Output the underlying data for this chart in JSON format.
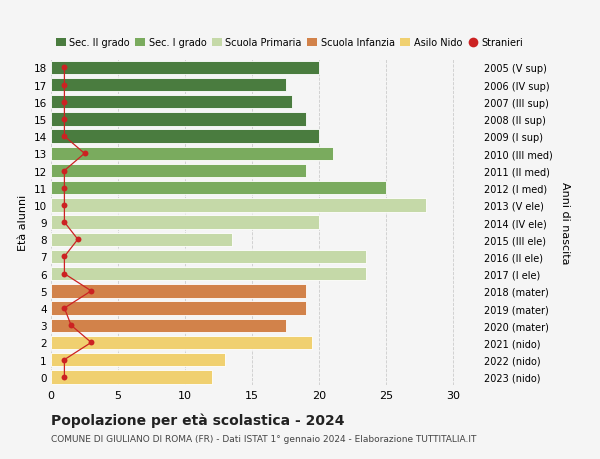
{
  "ages": [
    18,
    17,
    16,
    15,
    14,
    13,
    12,
    11,
    10,
    9,
    8,
    7,
    6,
    5,
    4,
    3,
    2,
    1,
    0
  ],
  "labels_right": [
    "2005 (V sup)",
    "2006 (IV sup)",
    "2007 (III sup)",
    "2008 (II sup)",
    "2009 (I sup)",
    "2010 (III med)",
    "2011 (II med)",
    "2012 (I med)",
    "2013 (V ele)",
    "2014 (IV ele)",
    "2015 (III ele)",
    "2016 (II ele)",
    "2017 (I ele)",
    "2018 (mater)",
    "2019 (mater)",
    "2020 (mater)",
    "2021 (nido)",
    "2022 (nido)",
    "2023 (nido)"
  ],
  "bar_values": [
    20,
    17.5,
    18,
    19,
    20,
    21,
    19,
    25,
    28,
    20,
    13.5,
    23.5,
    23.5,
    19,
    19,
    17.5,
    19.5,
    13,
    12
  ],
  "bar_colors": [
    "#4a7c3f",
    "#4a7c3f",
    "#4a7c3f",
    "#4a7c3f",
    "#4a7c3f",
    "#7aab5e",
    "#7aab5e",
    "#7aab5e",
    "#c5d9a8",
    "#c5d9a8",
    "#c5d9a8",
    "#c5d9a8",
    "#c5d9a8",
    "#d2824a",
    "#d2824a",
    "#d2824a",
    "#f0d070",
    "#f0d070",
    "#f0d070"
  ],
  "stranieri_values": [
    1,
    1,
    1,
    1,
    1,
    2.5,
    1,
    1,
    1,
    1,
    2,
    1,
    1,
    3,
    1,
    1.5,
    3,
    1,
    1
  ],
  "title": "Popolazione per età scolastica - 2024",
  "subtitle": "COMUNE DI GIULIANO DI ROMA (FR) - Dati ISTAT 1° gennaio 2024 - Elaborazione TUTTITALIA.IT",
  "ylabel_left": "Età alunni",
  "ylabel_right": "Anni di nascita",
  "xlim": [
    0,
    32
  ],
  "xticks": [
    0,
    5,
    10,
    15,
    20,
    25,
    30
  ],
  "legend_labels": [
    "Sec. II grado",
    "Sec. I grado",
    "Scuola Primaria",
    "Scuola Infanzia",
    "Asilo Nido",
    "Stranieri"
  ],
  "legend_colors": [
    "#4a7c3f",
    "#7aab5e",
    "#c5d9a8",
    "#d2824a",
    "#f0d070",
    "#cc2222"
  ],
  "bar_height": 0.78,
  "background_color": "#f5f5f5",
  "grid_color": "#cccccc",
  "stranieri_color": "#cc2222"
}
